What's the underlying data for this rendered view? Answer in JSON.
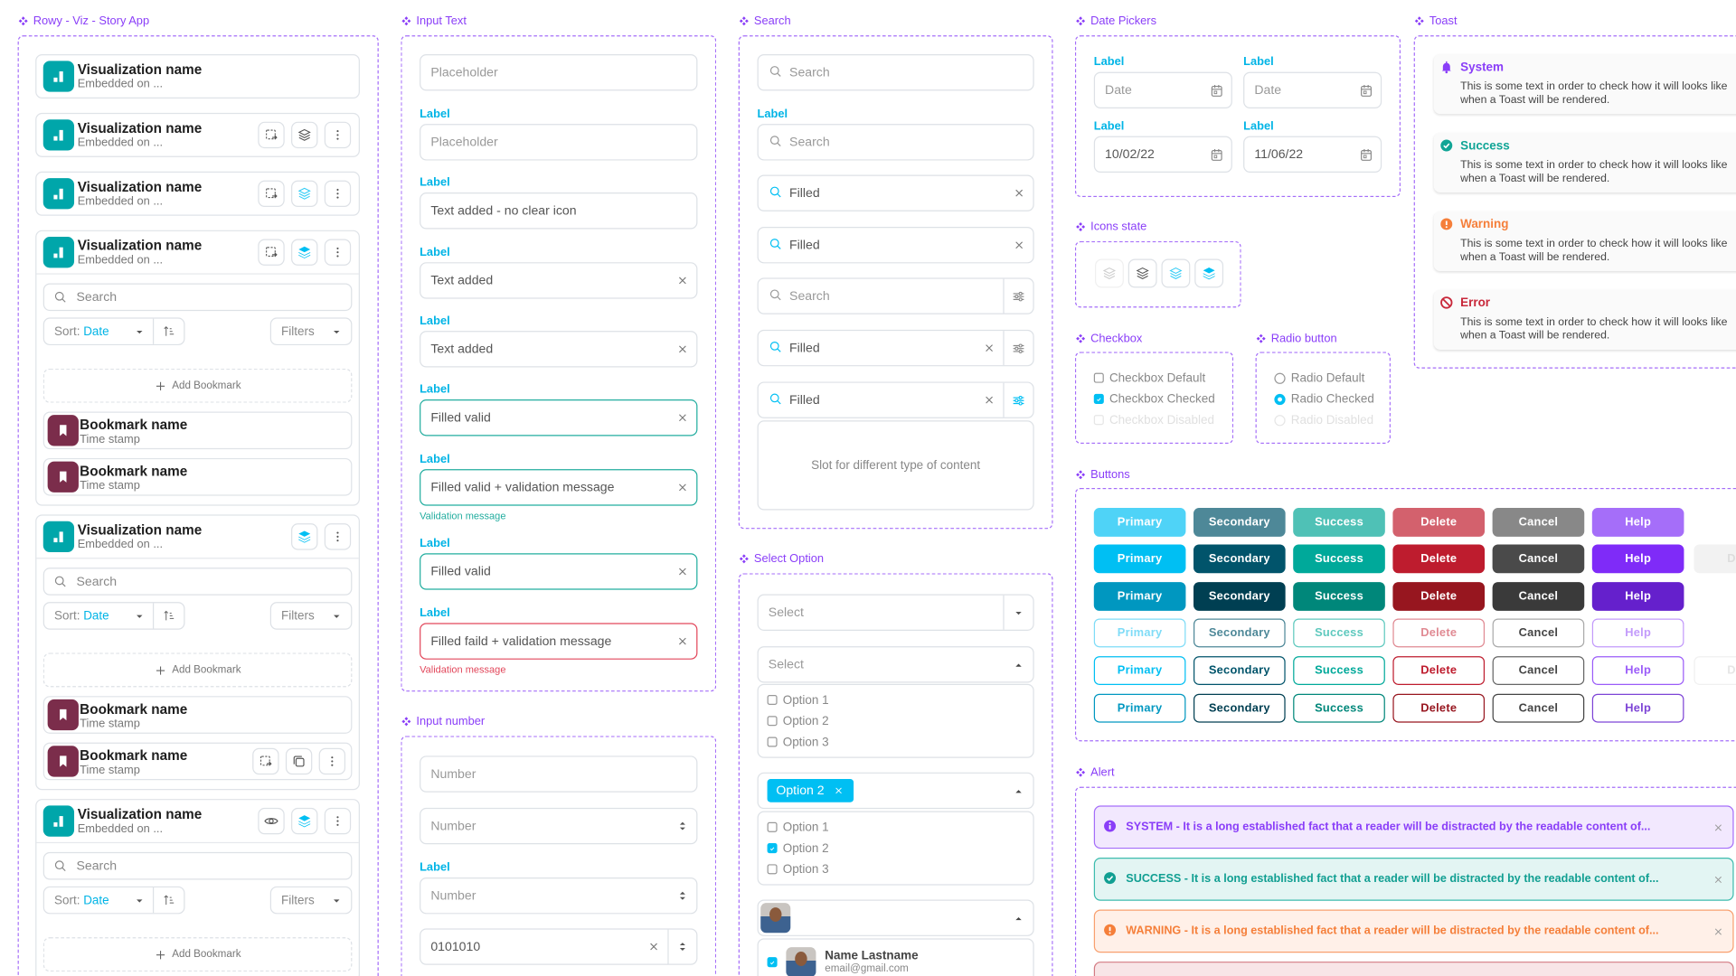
{
  "sections": {
    "story_app": "Rowy - Viz - Story App",
    "input_text": "Input Text",
    "input_number": "Input number",
    "search": "Search",
    "select_option": "Select Option",
    "date_pickers": "Date Pickers",
    "icons_state": "Icons state",
    "checkbox": "Checkbox",
    "radio": "Radio button",
    "buttons": "Buttons",
    "alert": "Alert",
    "toast": "Toast"
  },
  "colors": {
    "accent": "#00bff3",
    "frame": "#a56ef9",
    "viz_badge": "#00a6aa",
    "bookmark_badge": "#7b2d4b",
    "valid": "#22ad9f",
    "error": "#e2475b"
  },
  "story_app": {
    "search_placeholder": "Search",
    "sort_label": "Sort:",
    "sort_value": "Date",
    "filters_label": "Filters",
    "add_bookmark": "Add Bookmark",
    "cards": [
      {
        "name": "Visualization name",
        "subtitle": "Embedded on ...",
        "actions": []
      },
      {
        "name": "Visualization name",
        "subtitle": "Embedded on ...",
        "actions": [
          {
            "icon": "swap",
            "state": "default"
          },
          {
            "icon": "layers",
            "state": "default"
          },
          {
            "icon": "more",
            "state": "default"
          }
        ]
      },
      {
        "name": "Visualization name",
        "subtitle": "Embedded on ...",
        "actions": [
          {
            "icon": "swap",
            "state": "default"
          },
          {
            "icon": "layers",
            "state": "hover"
          },
          {
            "icon": "more",
            "state": "default"
          }
        ]
      },
      {
        "name": "Visualization name",
        "subtitle": "Embedded on ...",
        "actions": [
          {
            "icon": "swap",
            "state": "default"
          },
          {
            "icon": "layers",
            "state": "active"
          },
          {
            "icon": "more",
            "state": "default"
          }
        ],
        "expanded": true,
        "bookmarks": [
          {
            "name": "Bookmark name",
            "time": "Time stamp",
            "actions": []
          },
          {
            "name": "Bookmark name",
            "time": "Time stamp",
            "actions": []
          }
        ]
      },
      {
        "name": "Visualization name",
        "subtitle": "Embedded on ...",
        "actions": [
          {
            "icon": "layers",
            "state": "active"
          },
          {
            "icon": "more",
            "state": "default"
          }
        ],
        "expanded": true,
        "bookmarks": [
          {
            "name": "Bookmark name",
            "time": "Time stamp",
            "actions": []
          },
          {
            "name": "Bookmark name",
            "time": "Time stamp",
            "actions": [
              {
                "icon": "swap",
                "state": "default"
              },
              {
                "icon": "copy",
                "state": "default"
              },
              {
                "icon": "more",
                "state": "default"
              }
            ]
          }
        ]
      },
      {
        "name": "Visualization name",
        "subtitle": "Embedded on ...",
        "actions": [
          {
            "icon": "eye",
            "state": "default"
          },
          {
            "icon": "layers",
            "state": "active"
          },
          {
            "icon": "more",
            "state": "default"
          }
        ],
        "expanded": true,
        "bookmarks": []
      }
    ]
  },
  "input_text": [
    {
      "placeholder": "Placeholder"
    },
    {
      "label": "Label",
      "placeholder": "Placeholder"
    },
    {
      "label": "Label",
      "value": "Text added - no clear icon"
    },
    {
      "label": "Label",
      "value": "Text added",
      "clear": true
    },
    {
      "label": "Label",
      "value": "Text added",
      "clear": true
    },
    {
      "label": "Label",
      "value": "Filled valid",
      "clear": true,
      "state": "valid"
    },
    {
      "label": "Label",
      "value": "Filled valid + validation message",
      "clear": true,
      "state": "valid",
      "message": "Validation message"
    },
    {
      "label": "Label",
      "value": "Filled valid",
      "clear": true,
      "state": "valid"
    },
    {
      "label": "Label",
      "value": "Filled faild + validation message",
      "clear": true,
      "state": "error",
      "message": "Validation message"
    }
  ],
  "input_number": [
    {
      "placeholder": "Number"
    },
    {
      "placeholder": "Number",
      "stepper": true
    },
    {
      "label": "Label",
      "placeholder": "Number",
      "stepper": true
    },
    {
      "value": "0101010",
      "clear": true,
      "stepper": true
    }
  ],
  "search": {
    "fields": [
      {
        "placeholder": "Search"
      },
      {
        "label": "Label",
        "placeholder": "Search"
      },
      {
        "value": "Filled",
        "clear": true
      },
      {
        "value": "Filled",
        "clear": true
      },
      {
        "placeholder": "Search",
        "filter": "default"
      },
      {
        "value": "Filled",
        "clear": true,
        "filter": "default"
      },
      {
        "value": "Filled",
        "clear": true,
        "filter": "active"
      }
    ],
    "slot_text": "Slot for different type of content"
  },
  "select_option": {
    "closed": {
      "placeholder": "Select"
    },
    "open": {
      "placeholder": "Select",
      "options": [
        {
          "label": "Option 1",
          "checked": false
        },
        {
          "label": "Option 2",
          "checked": false
        },
        {
          "label": "Option 3",
          "checked": false
        }
      ]
    },
    "tagged": {
      "chip": "Option 2",
      "options": [
        {
          "label": "Option 1",
          "checked": false
        },
        {
          "label": "Option 2",
          "checked": true
        },
        {
          "label": "Option 3",
          "checked": false
        }
      ]
    },
    "user": {
      "options": [
        {
          "name": "Name Lastname",
          "email": "email@gmail.com",
          "checked": true
        }
      ]
    }
  },
  "date_pickers": [
    {
      "label": "Label",
      "placeholder": "Date"
    },
    {
      "label": "Label",
      "placeholder": "Date"
    },
    {
      "label": "Label",
      "value": "10/02/22"
    },
    {
      "label": "Label",
      "value": "11/06/22"
    }
  ],
  "icons_state": [
    "disabled",
    "default",
    "hover",
    "active"
  ],
  "checkbox": [
    {
      "label": "Checkbox Default",
      "state": "default"
    },
    {
      "label": "Checkbox Checked",
      "state": "checked"
    },
    {
      "label": "Checkbox Disabled",
      "state": "disabled"
    }
  ],
  "radio": [
    {
      "label": "Radio Default",
      "state": "default"
    },
    {
      "label": "Radio Checked",
      "state": "checked"
    },
    {
      "label": "Radio Disabled",
      "state": "disabled"
    }
  ],
  "buttons": {
    "labels": [
      "Primary",
      "Secondary",
      "Success",
      "Delete",
      "Cancel",
      "Help"
    ],
    "disabled_label": "Disa",
    "fill_rows": [
      [
        "#4fd3f7",
        "#4e8898",
        "#4fc1b6",
        "#d3616d",
        "#888888",
        "#a56ef9"
      ],
      [
        "#00bff3",
        "#01546b",
        "#00a99a",
        "#be1c2e",
        "#4a4a4a",
        "#7f2bf8"
      ],
      [
        "#0097c0",
        "#003f52",
        "#00877a",
        "#97161f",
        "#3a3a3a",
        "#6520cc"
      ]
    ],
    "outline_rows": [
      [
        "#7fdcf7",
        "#4e8898",
        "#5fc9be",
        "#e08a93",
        "#aaaaaa",
        "#c39bfb"
      ],
      [
        "#00bff3",
        "#01546b",
        "#00a99a",
        "#be1c2e",
        "#666666",
        "#9b5cf9"
      ],
      [
        "#0097c0",
        "#003f52",
        "#00877a",
        "#97161f",
        "#444444",
        "#7d44d6"
      ]
    ]
  },
  "alerts": [
    {
      "kind": "system",
      "text": "SYSTEM - It is a long established fact that a reader will be distracted by the readable content of...",
      "bg": "#f2e8fe",
      "border": "#a56ef9",
      "color": "#8a3ef8"
    },
    {
      "kind": "success",
      "text": "SUCCESS - It is a long established fact that a reader will be distracted by the readable content of...",
      "bg": "#e3f5f3",
      "border": "#3dbcae",
      "color": "#119f92"
    },
    {
      "kind": "warning",
      "text": "WARNING - It is a long established fact that a reader will be distracted by the readable content of...",
      "bg": "#fff0e8",
      "border": "#f8a06f",
      "color": "#f57f3a"
    },
    {
      "kind": "error",
      "bg": "#f8e5e7",
      "border": "#d37b83",
      "color": "#c0303e"
    }
  ],
  "toasts": [
    {
      "kind": "system",
      "title": "System",
      "text": "This is some text in order to check how it will looks like when a Toast will be rendered.",
      "color": "#8a3ef8"
    },
    {
      "kind": "success",
      "title": "Success",
      "text": "This is some text in order to check how it will looks like when a Toast will be rendered.",
      "color": "#11a596"
    },
    {
      "kind": "warning",
      "title": "Warning",
      "text": "This is some text in order to check how it will looks like when a Toast will be rendered.",
      "color": "#f57f3a"
    },
    {
      "kind": "error",
      "title": "Error",
      "text": "This is some text in order to check how it will looks like when a Toast will be rendered.",
      "color": "#c8283a"
    }
  ]
}
